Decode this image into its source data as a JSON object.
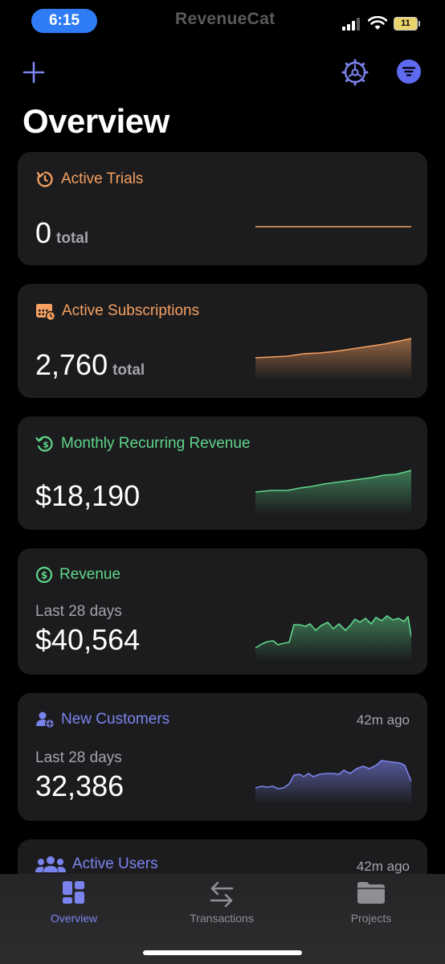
{
  "status": {
    "time": "6:15",
    "carrier": "RevenueCat",
    "battery": "11"
  },
  "header": {
    "add_icon": "plus-icon",
    "settings_icon": "gear-icon",
    "filter_icon": "filter-icon",
    "title": "Overview"
  },
  "cards": {
    "active_trials": {
      "title": "Active Trials",
      "value": "0",
      "unit": "total",
      "icon": "timer-icon",
      "color": "#f5a061"
    },
    "active_subscriptions": {
      "title": "Active Subscriptions",
      "value": "2,760",
      "unit": "total",
      "icon": "calendar-icon",
      "color": "#f5a061"
    },
    "mrr": {
      "title": "Monthly Recurring Revenue",
      "value": "$18,190",
      "icon": "recurring-dollar-icon",
      "color": "#5fd58a"
    },
    "revenue": {
      "title": "Revenue",
      "subtitle": "Last 28 days",
      "value": "$40,564",
      "icon": "dollar-circle-icon",
      "color": "#5fd58a"
    },
    "new_customers": {
      "title": "New Customers",
      "subtitle": "Last 28 days",
      "value": "32,386",
      "timestamp": "42m ago",
      "icon": "add-user-icon",
      "color": "#7b84ee"
    },
    "active_users": {
      "title": "Active Users",
      "timestamp": "42m ago",
      "icon": "users-icon",
      "color": "#7b84ee"
    }
  },
  "tabbar": {
    "tabs": [
      {
        "label": "Overview",
        "icon": "dashboard-icon",
        "active": true
      },
      {
        "label": "Transactions",
        "icon": "arrows-swap-icon",
        "active": false
      },
      {
        "label": "Projects",
        "icon": "folder-icon",
        "active": false
      }
    ],
    "active_color": "#7b84ee",
    "inactive_color": "#8e8e93"
  }
}
